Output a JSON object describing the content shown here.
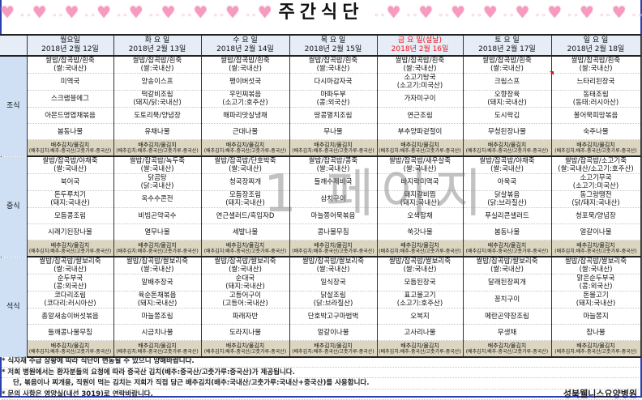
{
  "title": "주간식단",
  "watermark": "1 페이지",
  "colors": {
    "holiday": "#e8141e",
    "label_bg": "#cfe0f5",
    "kimchi_bg": "#dcd6c0",
    "frame": "#2a3fb0",
    "hearts": "#f59bbf"
  },
  "days": [
    {
      "name": "월요일",
      "date": "2018년 2월 12일",
      "holiday": false
    },
    {
      "name": "화 요 일",
      "date": "2018년 2월 13일",
      "holiday": false
    },
    {
      "name": "수 요 일",
      "date": "2018년 2월 14일",
      "holiday": false
    },
    {
      "name": "목 요 일",
      "date": "2018년 2월 15일",
      "holiday": false
    },
    {
      "name": "금 요 일(설날)",
      "date": "2018년 2월 16일",
      "holiday": true
    },
    {
      "name": "토 요 일",
      "date": "2018년 2월 17일",
      "holiday": false
    },
    {
      "name": "일 요 일",
      "date": "2018년 2월 18일",
      "holiday": false
    }
  ],
  "kimchi": {
    "name": "배추김치/물김치",
    "origin": "(배추김치:배추-중국산/고춧가루-중국산)"
  },
  "meals": [
    {
      "label": "조식",
      "rows": [
        [
          {
            "n": "쌀밥/잡곡밥/흰죽",
            "o": "(쌀:국내산)"
          },
          {
            "n": "쌀밥/잡곡밥/흰죽",
            "o": "(쌀:국내산)"
          },
          {
            "n": "쌀밥/잡곡밥/흰죽",
            "o": "(쌀:국내산)"
          },
          {
            "n": "쌀밥/잡곡밥/흰죽",
            "o": "(쌀:국내산)"
          },
          {
            "n": "쌀밥/잡곡밥/흰죽",
            "o": "(쌀:국내산)"
          },
          {
            "n": "쌀밥/잡곡밥/흰죽",
            "o": "(쌀:국내산)"
          },
          {
            "n": "쌀밥/잡곡밥/흰죽",
            "o": "(쌀:국내산)"
          }
        ],
        [
          {
            "n": "미역국"
          },
          {
            "n": "양송이스프"
          },
          {
            "n": "팽이버섯국"
          },
          {
            "n": "다시마감자국"
          },
          {
            "n": "소고기탕국",
            "o": "(소고기:미국산)"
          },
          {
            "n": "크림스프"
          },
          {
            "n": "느타리된장국"
          }
        ],
        [
          {
            "n": "스크램블에그"
          },
          {
            "n": "떡갈비조림",
            "o": "(돼지/닭:국내산)"
          },
          {
            "n": "우민찌볶음",
            "o": "(소고기:호주산)"
          },
          {
            "n": "마파두부",
            "o": "(콩:외국산)"
          },
          {
            "n": "가자미구이"
          },
          {
            "n": "오향장육",
            "o": "(돼지:국내산)"
          },
          {
            "n": "동태조림",
            "o": "(동태:러시아산)"
          }
        ],
        [
          {
            "n": "아몬드명엽채볶음"
          },
          {
            "n": "도토리묵/양념장"
          },
          {
            "n": "해파리맛살냉채"
          },
          {
            "n": "땅콩멸치조림"
          },
          {
            "n": "연근조림"
          },
          {
            "n": "도시락김"
          },
          {
            "n": "볼어묵피망볶음"
          }
        ],
        [
          {
            "n": "봄동나물"
          },
          {
            "n": "유채나물"
          },
          {
            "n": "근대나물"
          },
          {
            "n": "무나물"
          },
          {
            "n": "부추양파겉절이"
          },
          {
            "n": "무청된장나물"
          },
          {
            "n": "숙주나물"
          }
        ]
      ]
    },
    {
      "label": "중식",
      "rows": [
        [
          {
            "n": "쌀밥/잡곡밥/야채죽",
            "o": "(쌀:국내산)"
          },
          {
            "n": "쌀밥/잡곡밥/녹두죽",
            "o": "(쌀:국내산)"
          },
          {
            "n": "쌀밥/잡곡밥/단호박죽",
            "o": "(쌀:국내산)"
          },
          {
            "n": "쌀밥/잡곡밥/콩죽",
            "o": "(쌀:국내산)"
          },
          {
            "n": "쌀밥/잡곡밥/새우살죽",
            "o": "(쌀:국내산)"
          },
          {
            "n": "쌀밥/잡곡밥/야채죽",
            "o": "(쌀:국내산)"
          },
          {
            "n": "쌀밥/잡곡밥/소고기죽",
            "o": "(쌀:국내산/소고기:호주산)"
          }
        ],
        [
          {
            "n": "북어국"
          },
          {
            "n": "닭곰탕",
            "o": "(닭:국내산)"
          },
          {
            "n": "청국장찌개"
          },
          {
            "n": "들깨수제비국"
          },
          {
            "n": "바지락미역국"
          },
          {
            "n": "아욱국"
          },
          {
            "n": "소고기무국",
            "o": "(소고기:미국산)"
          }
        ],
        [
          {
            "n": "돈두루치기",
            "o": "(돼지:국내산)"
          },
          {
            "n": "옥수수콘전"
          },
          {
            "n": "모듬장조림",
            "o": "(돼지:국내산)"
          },
          {
            "n": "삼치구이"
          },
          {
            "n": "돼지갈비찜",
            "o": "(돼지:국내산)"
          },
          {
            "n": "닭살볶음",
            "o": "(닭:브라질산)"
          },
          {
            "n": "동그랑땡전",
            "o": "(닭/돼지:국내산)"
          }
        ],
        [
          {
            "n": "모듬콩조림"
          },
          {
            "n": "비빔곤약국수"
          },
          {
            "n": "연근샐러드/흑임자D"
          },
          {
            "n": "마늘쫑어묵볶음"
          },
          {
            "n": "오색잡채"
          },
          {
            "n": "푸실리콘샐러드"
          },
          {
            "n": "청포묵/양념장"
          }
        ],
        [
          {
            "n": "시래기된장나물"
          },
          {
            "n": "열무나물"
          },
          {
            "n": "세발나물"
          },
          {
            "n": "콩나물무침"
          },
          {
            "n": "쑥갓나물"
          },
          {
            "n": "봄동나물"
          },
          {
            "n": "얼갈이나물"
          }
        ]
      ]
    },
    {
      "label": "석식",
      "rows": [
        [
          {
            "n": "쌀밥/잡곡밥/쌀보리죽",
            "o": "(쌀:국내산)"
          },
          {
            "n": "쌀밥/잡곡밥/쌀보리죽",
            "o": "(쌀:국내산)"
          },
          {
            "n": "쌀밥/잡곡밥/쌀보리죽",
            "o": "(쌀:국내산)"
          },
          {
            "n": "쌀밥/잡곡밥/쌀보리죽",
            "o": "(쌀:국내산)"
          },
          {
            "n": "쌀밥/잡곡밥/쌀보리죽",
            "o": "(쌀:국내산)"
          },
          {
            "n": "쌀밥/잡곡밥/쌀보리죽",
            "o": "(쌀:국내산)"
          },
          {
            "n": "쌀밥/잡곡밥/쌀보리죽",
            "o": "(쌀:국내산)"
          }
        ],
        [
          {
            "n": "순두부국",
            "o": "(콩:외국산)"
          },
          {
            "n": "알배추장국"
          },
          {
            "n": "순대국",
            "o": "(돼지:국내산)"
          },
          {
            "n": "일식장국"
          },
          {
            "n": "모듬된장국"
          },
          {
            "n": "달래된장찌개"
          },
          {
            "n": "맑은순두부국",
            "o": "(콩:외국산)"
          }
        ],
        [
          {
            "n": "코다리조림",
            "o": "(코다리:러시아산)"
          },
          {
            "n": "육순돈채볶음",
            "o": "(돼지:국내산)"
          },
          {
            "n": "고등어구이",
            "o": "(고등어:국내산)"
          },
          {
            "n": "닭살조림",
            "o": "(닭:브라질산)"
          },
          {
            "n": "표고불고기",
            "o": "(소고기:호주산)"
          },
          {
            "n": "꽁치구이"
          },
          {
            "n": "돈불고기",
            "o": "(돼지:국내산)"
          }
        ],
        [
          {
            "n": "총알새송이버섯볶음"
          },
          {
            "n": "마늘쫑조림"
          },
          {
            "n": "파래자반"
          },
          {
            "n": "단호박고구마범벅"
          },
          {
            "n": "오복지"
          },
          {
            "n": "메란곤약장조림"
          },
          {
            "n": "마늘쫑지"
          }
        ],
        [
          {
            "n": "들깨콩나물무침"
          },
          {
            "n": "시금치나물"
          },
          {
            "n": "도라지나물"
          },
          {
            "n": "얼갈이나물"
          },
          {
            "n": "고사리나물"
          },
          {
            "n": "무생채"
          },
          {
            "n": "참나물"
          }
        ]
      ]
    }
  ],
  "footer": {
    "notes": [
      "* 식자재 수급 상황에 따라 식단이 변동될 수 있으니 양해바랍니다.",
      "* 저희 병원에서는 환자분들의 요청에 따라 중국산 김치(배추:중국산/고춧가루:중국산)가 제공됩니다.",
      "단, 볶음이나 찌개용, 직원이 먹는 김치는 저희가 직접 담근 배추김치(배추:국내산/고춧가루:국내산+중국산)를 사용합니다.",
      "* 문의 사항은 영양실(내선 3019)로 연락바랍니다."
    ],
    "hospital": "성북웰니스요양병원"
  }
}
